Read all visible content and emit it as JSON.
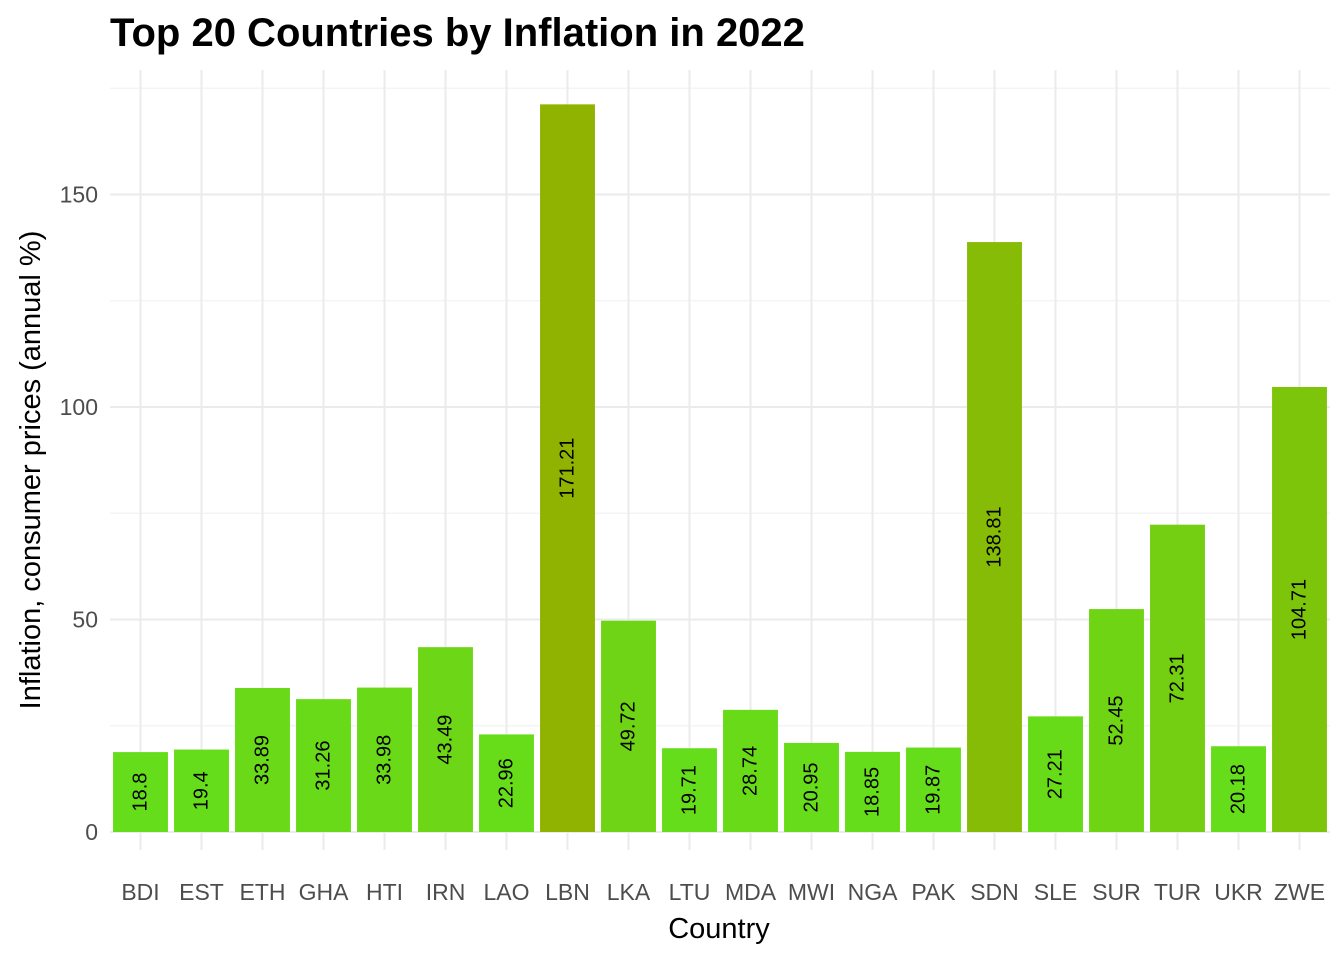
{
  "chart_data": {
    "type": "bar",
    "title": "Top 20 Countries by Inflation in 2022",
    "xlabel": "Country",
    "ylabel": "Inflation, consumer prices (annual %)",
    "categories": [
      "BDI",
      "EST",
      "ETH",
      "GHA",
      "HTI",
      "IRN",
      "LAO",
      "LBN",
      "LKA",
      "LTU",
      "MDA",
      "MWI",
      "NGA",
      "PAK",
      "SDN",
      "SLE",
      "SUR",
      "TUR",
      "UKR",
      "ZWE"
    ],
    "values": [
      18.8,
      19.4,
      33.89,
      31.26,
      33.98,
      43.49,
      22.96,
      171.21,
      49.72,
      19.71,
      28.74,
      20.95,
      18.85,
      19.87,
      138.81,
      27.21,
      52.45,
      72.31,
      20.18,
      104.71
    ],
    "data_labels": [
      "18.8",
      "19.4",
      "33.89",
      "31.26",
      "33.98",
      "43.49",
      "22.96",
      "171.21",
      "49.72",
      "19.71",
      "28.74",
      "20.95",
      "18.85",
      "19.87",
      "138.81",
      "27.21",
      "52.45",
      "72.31",
      "20.18",
      "104.71"
    ],
    "y_ticks": [
      0,
      50,
      100,
      150
    ],
    "ylim": [
      0,
      175
    ],
    "grid": true,
    "legend": "none",
    "color_scale": {
      "low": "#66dd1a",
      "high": "#8fb300"
    }
  }
}
